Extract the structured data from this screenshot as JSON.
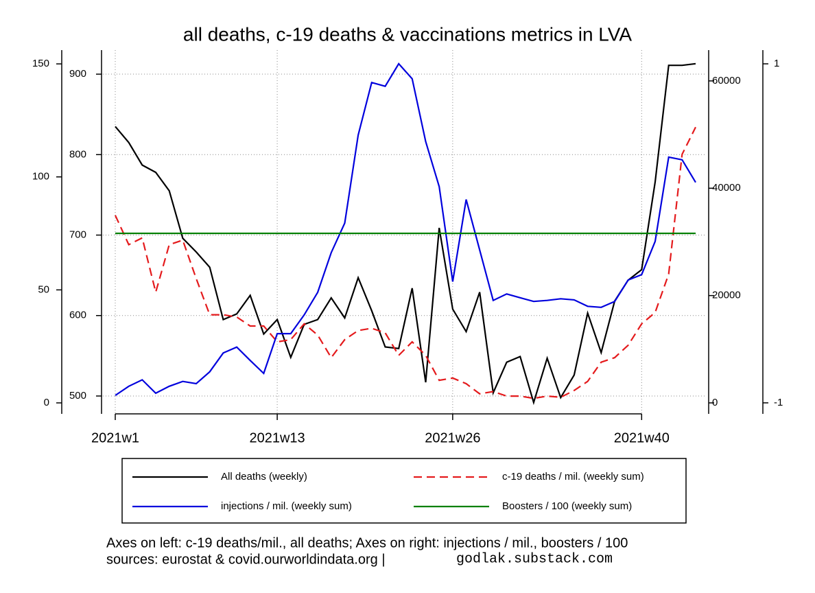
{
  "chart_data": {
    "type": "line",
    "title": "all deaths, c-19 deaths & vaccinations metrics in LVA",
    "categories": [
      "2021w1",
      null,
      null,
      null,
      null,
      null,
      null,
      null,
      null,
      null,
      null,
      null,
      "2021w13",
      null,
      null,
      null,
      null,
      null,
      null,
      null,
      null,
      null,
      null,
      null,
      null,
      "2021w26",
      null,
      null,
      null,
      null,
      null,
      null,
      null,
      null,
      null,
      null,
      null,
      null,
      null,
      "2021w40",
      null,
      null,
      null,
      null
    ],
    "ylim": [
      477.8,
      929.9
    ],
    "yticks": [
      500,
      600,
      700,
      800,
      900
    ],
    "y2lim": [
      -2046,
      65740
    ],
    "y2ticks": [
      0,
      20000,
      40000,
      60000
    ],
    "y3lim": [
      -4.86,
      156.1
    ],
    "y3ticks": [
      0,
      50,
      100,
      150
    ],
    "y4lim": [
      -1.065,
      1.081
    ],
    "y4ticks": [
      -1,
      1
    ],
    "grid": true,
    "series": [
      {
        "name": "All deaths (weekly)",
        "color": "#000000",
        "axis": "y",
        "dashed": false,
        "values": [
          835,
          815,
          787,
          778,
          755,
          696,
          679,
          660,
          595,
          602,
          625,
          577,
          595,
          548,
          589,
          595,
          622,
          597,
          647,
          606,
          561,
          559,
          634,
          517,
          709,
          608,
          580,
          629,
          504,
          542,
          549,
          492,
          547,
          498,
          526,
          603,
          554,
          618,
          644,
          657,
          766,
          911,
          911,
          913
        ]
      },
      {
        "name": "c-19 deaths / mil. (weekly sum)",
        "color": "#e41a1c",
        "axis": "y3",
        "dashed": true,
        "values": [
          83,
          70,
          73,
          49,
          70,
          72,
          55,
          39,
          39,
          38,
          34,
          34,
          27,
          28,
          35,
          30,
          20,
          28,
          32,
          33,
          31,
          21,
          27,
          21,
          10,
          11,
          8.5,
          4,
          5,
          3,
          3,
          2,
          3,
          2.5,
          5.5,
          9.5,
          18,
          20,
          25.5,
          35,
          40,
          57,
          110,
          122
        ]
      },
      {
        "name": "injections / mil. (weekly sum)",
        "color": "#0000dd",
        "axis": "y2",
        "dashed": false,
        "values": [
          1400,
          3100,
          4300,
          1800,
          3100,
          4000,
          3600,
          5800,
          9300,
          10400,
          7900,
          5500,
          12900,
          12900,
          16400,
          20600,
          28000,
          33500,
          49900,
          59700,
          59000,
          63200,
          60400,
          48700,
          40300,
          22600,
          37900,
          28500,
          19100,
          20300,
          19600,
          18900,
          19100,
          19400,
          19200,
          18000,
          17800,
          18900,
          22900,
          23900,
          30100,
          45800,
          45300,
          41100
        ]
      },
      {
        "name": "Boosters / 100 (weekly sum)",
        "color": "#008000",
        "axis": "y4",
        "dashed": false,
        "values": [
          0,
          0,
          0,
          0,
          0,
          0,
          0,
          0,
          0,
          0,
          0,
          0,
          0,
          0,
          0,
          0,
          0,
          0,
          0,
          0,
          0,
          0,
          0,
          0,
          0,
          0,
          0,
          0,
          0,
          0,
          0,
          0,
          0,
          0,
          0,
          0,
          0,
          0,
          0,
          0,
          0,
          0,
          0,
          0
        ]
      }
    ],
    "footnote": "Axes on left: c-19 deaths/mil., all deaths; Axes on right: injections / mil., boosters / 100",
    "sources": "sources: eurostat & covid.ourworldindata.org |",
    "site": "godlak.substack.com"
  }
}
